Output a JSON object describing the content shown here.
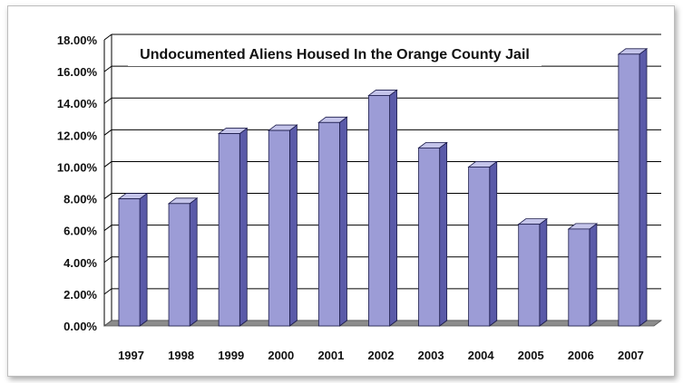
{
  "chart_data": {
    "type": "bar",
    "title": "Undocumented Aliens Housed In the Orange County Jail",
    "categories": [
      "1997",
      "1998",
      "1999",
      "2000",
      "2001",
      "2002",
      "2003",
      "2004",
      "2005",
      "2006",
      "2007"
    ],
    "values": [
      8.0,
      7.7,
      12.1,
      12.3,
      12.8,
      14.5,
      11.2,
      10.0,
      6.4,
      6.1,
      17.1
    ],
    "ylim": [
      0,
      18
    ],
    "y_ticks": [
      "0.00%",
      "2.00%",
      "4.00%",
      "6.00%",
      "8.00%",
      "10.00%",
      "12.00%",
      "14.00%",
      "16.00%",
      "18.00%"
    ],
    "grid": true,
    "legend": "none",
    "colors": {
      "bar_front": "#9c9cd6",
      "bar_side": "#5a5aa8",
      "bar_top": "#c4c4ea",
      "bar_outline": "#1a1a4a",
      "floor": "#8c8c8c",
      "grid": "#000000"
    }
  }
}
